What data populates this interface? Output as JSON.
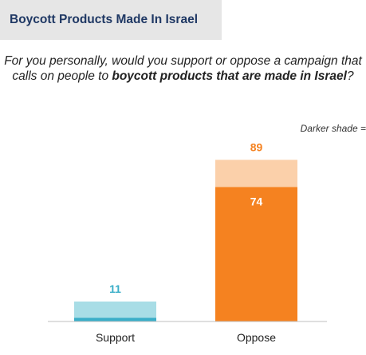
{
  "header": {
    "title": "Boycott Products Made In Israel"
  },
  "question": {
    "part1": "For you personally, would you support or oppose a campaign that calls on people to ",
    "bold": "boycott products that are made in Israel",
    "part2": "?"
  },
  "legend_note": "Darker shade =",
  "colors": {
    "support_light": "#a8dde6",
    "support_dark": "#3aaec8",
    "oppose_light": "#fbd0aa",
    "oppose_dark": "#f58220",
    "support_label": "#3aaec8",
    "oppose_label": "#f58220"
  },
  "chart_data": {
    "type": "bar",
    "categories": [
      "Support",
      "Oppose"
    ],
    "series": [
      {
        "values": [
          11,
          89
        ]
      },
      {
        "values": [
          2,
          74
        ]
      }
    ],
    "data_labels": [
      "11",
      "89",
      "",
      "74"
    ],
    "ylim": [
      0,
      100
    ]
  }
}
